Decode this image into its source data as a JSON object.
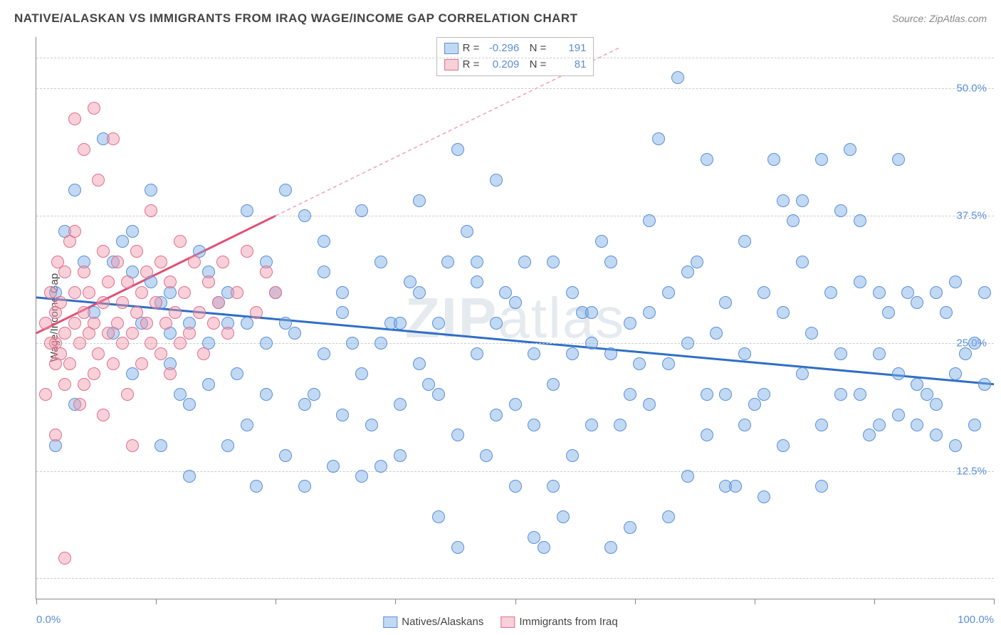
{
  "chart": {
    "type": "scatter",
    "title": "NATIVE/ALASKAN VS IMMIGRANTS FROM IRAQ WAGE/INCOME GAP CORRELATION CHART",
    "source": "Source: ZipAtlas.com",
    "watermark_prefix": "ZIP",
    "watermark_suffix": "atlas",
    "y_label": "Wage/Income Gap",
    "background_color": "#ffffff",
    "grid_color": "#cccccc",
    "axis_color": "#888888",
    "label_color": "#444444",
    "tick_label_color": "#5a8fd6",
    "xlim": [
      0,
      100
    ],
    "ylim": [
      0,
      55
    ],
    "x_ticks": [
      0,
      12.5,
      25,
      37.5,
      50,
      62.5,
      75,
      87.5,
      100
    ],
    "x_tick_labels": {
      "0": "0.0%",
      "100": "100.0%"
    },
    "y_gridlines": [
      2,
      12.5,
      25,
      37.5,
      50,
      53
    ],
    "y_tick_labels": {
      "12.5": "12.5%",
      "25": "25.0%",
      "37.5": "37.5%",
      "50": "50.0%"
    },
    "point_radius": 9,
    "point_stroke_width": 1
  },
  "series": [
    {
      "name": "Natives/Alaskans",
      "fill_color": "rgba(120,170,230,0.45)",
      "stroke_color": "#5a8fd6",
      "R": "-0.296",
      "N": "191",
      "trend": {
        "x1": 0,
        "y1": 29.5,
        "x2": 100,
        "y2": 21,
        "color": "#2f6fc4",
        "width": 3,
        "dash": "none"
      },
      "points": [
        [
          2,
          30
        ],
        [
          4,
          40
        ],
        [
          8,
          33
        ],
        [
          10,
          32
        ],
        [
          12,
          31
        ],
        [
          11,
          27
        ],
        [
          13,
          29
        ],
        [
          14,
          23
        ],
        [
          16,
          19
        ],
        [
          18,
          25
        ],
        [
          20,
          30
        ],
        [
          22,
          27
        ],
        [
          24,
          33
        ],
        [
          26,
          40
        ],
        [
          28,
          37.5
        ],
        [
          30,
          35
        ],
        [
          32,
          30
        ],
        [
          34,
          38
        ],
        [
          36,
          13
        ],
        [
          38,
          14
        ],
        [
          40,
          23
        ],
        [
          42,
          27
        ],
        [
          44,
          44
        ],
        [
          46,
          33
        ],
        [
          48,
          41
        ],
        [
          50,
          19
        ],
        [
          52,
          17
        ],
        [
          54,
          11
        ],
        [
          56,
          24
        ],
        [
          58,
          25
        ],
        [
          60,
          5
        ],
        [
          62,
          27
        ],
        [
          64,
          37
        ],
        [
          66,
          8
        ],
        [
          68,
          32
        ],
        [
          70,
          20
        ],
        [
          72,
          11
        ],
        [
          74,
          24
        ],
        [
          76,
          30
        ],
        [
          78,
          15
        ],
        [
          80,
          39
        ],
        [
          82,
          43
        ],
        [
          84,
          20
        ],
        [
          86,
          31
        ],
        [
          88,
          17
        ],
        [
          90,
          22
        ],
        [
          92,
          29
        ],
        [
          94,
          19
        ],
        [
          96,
          31
        ],
        [
          98,
          17
        ],
        [
          99,
          30
        ],
        [
          97,
          24
        ],
        [
          95,
          28
        ],
        [
          93,
          20
        ],
        [
          91,
          30
        ],
        [
          89,
          28
        ],
        [
          87,
          16
        ],
        [
          85,
          44
        ],
        [
          83,
          30
        ],
        [
          81,
          26
        ],
        [
          79,
          37
        ],
        [
          77,
          43
        ],
        [
          75,
          19
        ],
        [
          73,
          11
        ],
        [
          71,
          26
        ],
        [
          69,
          33
        ],
        [
          67,
          51
        ],
        [
          65,
          45
        ],
        [
          63,
          23
        ],
        [
          61,
          17
        ],
        [
          59,
          35
        ],
        [
          57,
          28
        ],
        [
          55,
          8
        ],
        [
          53,
          5
        ],
        [
          51,
          33
        ],
        [
          49,
          30
        ],
        [
          47,
          14
        ],
        [
          45,
          36
        ],
        [
          43,
          33
        ],
        [
          41,
          21
        ],
        [
          39,
          31
        ],
        [
          37,
          27
        ],
        [
          35,
          17
        ],
        [
          33,
          25
        ],
        [
          31,
          13
        ],
        [
          29,
          20
        ],
        [
          27,
          26
        ],
        [
          25,
          30
        ],
        [
          23,
          11
        ],
        [
          21,
          22
        ],
        [
          19,
          29
        ],
        [
          17,
          34
        ],
        [
          15,
          20
        ],
        [
          13,
          15
        ],
        [
          12,
          40
        ],
        [
          10,
          22
        ],
        [
          9,
          35
        ],
        [
          8,
          26
        ],
        [
          7,
          45
        ],
        [
          6,
          28
        ],
        [
          5,
          33
        ],
        [
          4,
          19
        ],
        [
          3,
          36
        ],
        [
          2,
          15
        ],
        [
          96,
          15
        ],
        [
          94,
          30
        ],
        [
          92,
          21
        ],
        [
          90,
          18
        ],
        [
          88,
          30
        ],
        [
          86,
          37
        ],
        [
          84,
          24
        ],
        [
          82,
          11
        ],
        [
          80,
          33
        ],
        [
          78,
          39
        ],
        [
          76,
          20
        ],
        [
          74,
          17
        ],
        [
          72,
          29
        ],
        [
          70,
          43
        ],
        [
          68,
          12
        ],
        [
          66,
          23
        ],
        [
          64,
          28
        ],
        [
          62,
          20
        ],
        [
          60,
          33
        ],
        [
          58,
          17
        ],
        [
          56,
          30
        ],
        [
          54,
          21
        ],
        [
          52,
          6
        ],
        [
          50,
          29
        ],
        [
          48,
          18
        ],
        [
          46,
          24
        ],
        [
          44,
          5
        ],
        [
          42,
          20
        ],
        [
          40,
          39
        ],
        [
          38,
          27
        ],
        [
          36,
          33
        ],
        [
          34,
          22
        ],
        [
          32,
          18
        ],
        [
          30,
          24
        ],
        [
          28,
          11
        ],
        [
          26,
          27
        ],
        [
          24,
          20
        ],
        [
          22,
          38
        ],
        [
          20,
          15
        ],
        [
          18,
          32
        ],
        [
          16,
          27
        ],
        [
          14,
          30
        ],
        [
          98,
          25
        ],
        [
          96,
          22
        ],
        [
          94,
          16
        ],
        [
          92,
          17
        ],
        [
          90,
          43
        ],
        [
          88,
          24
        ],
        [
          86,
          20
        ],
        [
          84,
          38
        ],
        [
          82,
          17
        ],
        [
          80,
          22
        ],
        [
          78,
          28
        ],
        [
          76,
          10
        ],
        [
          74,
          35
        ],
        [
          72,
          20
        ],
        [
          70,
          16
        ],
        [
          68,
          25
        ],
        [
          66,
          30
        ],
        [
          64,
          19
        ],
        [
          62,
          7
        ],
        [
          60,
          24
        ],
        [
          58,
          28
        ],
        [
          56,
          14
        ],
        [
          54,
          33
        ],
        [
          52,
          24
        ],
        [
          50,
          11
        ],
        [
          48,
          27
        ],
        [
          46,
          31
        ],
        [
          44,
          16
        ],
        [
          42,
          8
        ],
        [
          40,
          30
        ],
        [
          38,
          19
        ],
        [
          36,
          25
        ],
        [
          34,
          12
        ],
        [
          32,
          28
        ],
        [
          30,
          32
        ],
        [
          28,
          19
        ],
        [
          26,
          14
        ],
        [
          24,
          25
        ],
        [
          22,
          17
        ],
        [
          20,
          27
        ],
        [
          18,
          21
        ],
        [
          16,
          12
        ],
        [
          14,
          26
        ],
        [
          99,
          21
        ],
        [
          10,
          36
        ]
      ]
    },
    {
      "name": "Immigrants from Iraq",
      "fill_color": "rgba(240,150,170,0.45)",
      "stroke_color": "#e06f8b",
      "R": "0.209",
      "N": "81",
      "trend": {
        "x1": 0,
        "y1": 26,
        "x2": 25,
        "y2": 37.5,
        "color": "#e04f75",
        "width": 3,
        "dash": "none"
      },
      "trend_ext": {
        "x1": 25,
        "y1": 37.5,
        "x2": 61,
        "y2": 54,
        "color": "#f0a0b5",
        "width": 1.5,
        "dash": "5,4"
      },
      "points": [
        [
          1,
          27
        ],
        [
          1.5,
          30
        ],
        [
          2,
          25
        ],
        [
          2,
          28
        ],
        [
          2.2,
          33
        ],
        [
          2.5,
          24
        ],
        [
          2.5,
          29
        ],
        [
          3,
          26
        ],
        [
          3,
          21
        ],
        [
          3,
          32
        ],
        [
          3.5,
          35
        ],
        [
          3.5,
          23
        ],
        [
          4,
          47
        ],
        [
          4,
          27
        ],
        [
          4,
          30
        ],
        [
          4.5,
          19
        ],
        [
          4.5,
          25
        ],
        [
          5,
          44
        ],
        [
          5,
          28
        ],
        [
          5,
          32
        ],
        [
          5.5,
          26
        ],
        [
          5.5,
          30
        ],
        [
          6,
          48
        ],
        [
          6,
          22
        ],
        [
          6,
          27
        ],
        [
          6.5,
          41
        ],
        [
          6.5,
          24
        ],
        [
          7,
          34
        ],
        [
          7,
          29
        ],
        [
          7,
          18
        ],
        [
          7.5,
          26
        ],
        [
          7.5,
          31
        ],
        [
          8,
          45
        ],
        [
          8,
          23
        ],
        [
          8.5,
          27
        ],
        [
          8.5,
          33
        ],
        [
          9,
          25
        ],
        [
          9,
          29
        ],
        [
          9.5,
          20
        ],
        [
          9.5,
          31
        ],
        [
          10,
          15
        ],
        [
          10,
          26
        ],
        [
          10.5,
          28
        ],
        [
          10.5,
          34
        ],
        [
          11,
          23
        ],
        [
          11,
          30
        ],
        [
          11.5,
          27
        ],
        [
          11.5,
          32
        ],
        [
          12,
          38
        ],
        [
          12,
          25
        ],
        [
          12.5,
          29
        ],
        [
          13,
          33
        ],
        [
          13,
          24
        ],
        [
          13.5,
          27
        ],
        [
          14,
          31
        ],
        [
          14,
          22
        ],
        [
          14.5,
          28
        ],
        [
          15,
          35
        ],
        [
          15,
          25
        ],
        [
          15.5,
          30
        ],
        [
          16,
          26
        ],
        [
          16.5,
          33
        ],
        [
          17,
          28
        ],
        [
          17.5,
          24
        ],
        [
          18,
          31
        ],
        [
          18.5,
          27
        ],
        [
          19,
          29
        ],
        [
          19.5,
          33
        ],
        [
          20,
          26
        ],
        [
          21,
          30
        ],
        [
          22,
          34
        ],
        [
          23,
          28
        ],
        [
          24,
          32
        ],
        [
          25,
          30
        ],
        [
          1,
          20
        ],
        [
          2,
          16
        ],
        [
          3,
          4
        ],
        [
          2,
          23
        ],
        [
          1.5,
          25
        ],
        [
          4,
          36
        ],
        [
          5,
          21
        ]
      ]
    }
  ],
  "legend": {
    "items": [
      {
        "label": "Natives/Alaskans",
        "fill": "rgba(120,170,230,0.45)",
        "stroke": "#5a8fd6"
      },
      {
        "label": "Immigrants from Iraq",
        "fill": "rgba(240,150,170,0.45)",
        "stroke": "#e06f8b"
      }
    ]
  }
}
